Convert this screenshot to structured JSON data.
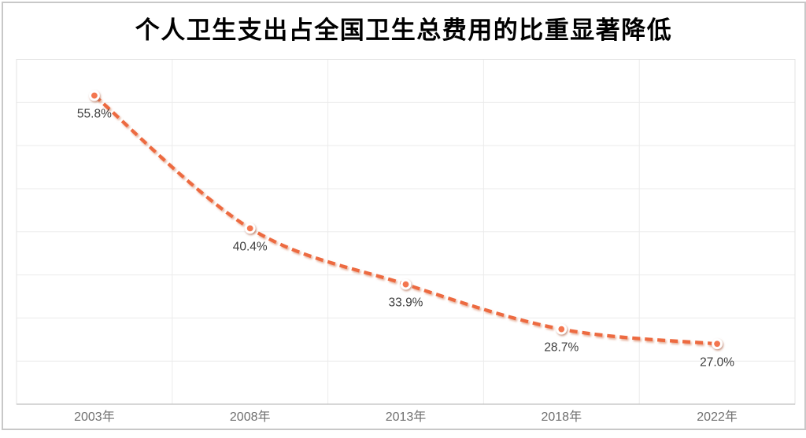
{
  "title": "个人卫生支出占全国卫生总费用的比重显著降低",
  "chart_data": {
    "type": "line",
    "title": "个人卫生支出占全国卫生总费用的比重显著降低",
    "categories": [
      "2003年",
      "2008年",
      "2013年",
      "2018年",
      "2022年"
    ],
    "values": [
      55.8,
      40.4,
      33.9,
      28.7,
      27.0
    ],
    "point_labels": [
      "55.8%",
      "40.4%",
      "33.9%",
      "28.7%",
      "27.0%"
    ],
    "series_name": "个人卫生支出占全国卫生总费用的比重",
    "xlabel": "",
    "ylabel": "",
    "ylim": [
      20,
      60
    ],
    "y_grid_step": 5,
    "y_tick_labels_visible": false,
    "grid": true,
    "legend": "none",
    "line_style": "dashed",
    "smooth": true,
    "marker": "circle"
  },
  "style": {
    "line_color": "#ed6a3f",
    "line_shadow_color": "#d98a6a",
    "marker_fill": "#f3764f",
    "marker_ring": "#ffffff",
    "marker_shadow_color": "#b9765c",
    "gridline_color": "#ebebeb",
    "plot_border_color": "#e3e3e3",
    "axis_line_color": "#bfbfbf",
    "axis_label_color": "#6f6f6f",
    "data_label_color": "#3d3d3d",
    "title_color": "#000000",
    "frame_border_color": "#c8c8c8",
    "background": "#ffffff"
  }
}
